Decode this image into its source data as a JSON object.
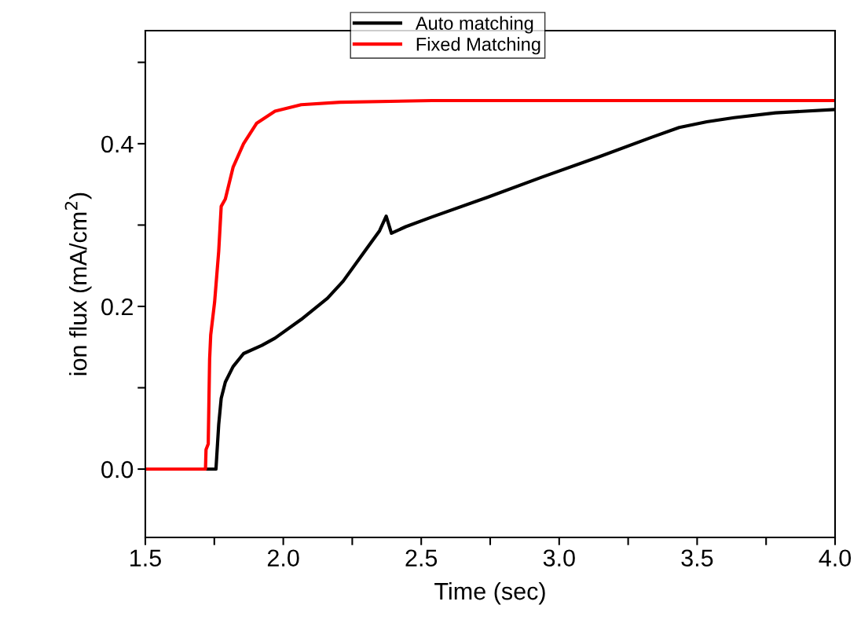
{
  "chart_data": {
    "type": "line",
    "xlabel": "Time (sec)",
    "ylabel": "ion flux (mA/cm$^{2}$)",
    "xlim": [
      1.5,
      4.0
    ],
    "ylim": [
      -0.084,
      0.539
    ],
    "xticks": [
      1.5,
      {
        "value": 1.75,
        "label": null
      },
      {
        "value": 2,
        "label": "2.0"
      },
      {
        "value": 2.25,
        "label": null
      },
      2.5,
      {
        "value": 2.75,
        "label": null
      },
      {
        "value": 3,
        "label": "3.0"
      },
      {
        "value": 3.25,
        "label": null
      },
      3.5,
      {
        "value": 3.75,
        "label": null
      },
      {
        "value": 4,
        "label": "4.0"
      }
    ],
    "yticks": [
      {
        "value": 0,
        "label": "0.0"
      },
      {
        "value": 0.1,
        "label": null
      },
      0.2,
      {
        "value": 0.3,
        "label": null
      },
      0.4,
      {
        "value": 0.5,
        "label": null
      }
    ],
    "legend": "top",
    "grid": false,
    "marker": "none",
    "line_style": "solid",
    "series": [
      {
        "name": "Auto matching",
        "color": "#000000",
        "x": [
          1.5,
          1.756,
          1.766,
          1.775,
          1.79,
          1.818,
          1.856,
          1.922,
          1.97,
          2.065,
          2.16,
          2.217,
          2.302,
          2.349,
          2.373,
          2.392,
          2.444,
          2.539,
          2.739,
          2.938,
          3.137,
          3.336,
          3.435,
          3.535,
          3.634,
          3.784,
          4.0
        ],
        "values": [
          0.0,
          0.0,
          0.055,
          0.087,
          0.107,
          0.126,
          0.142,
          0.152,
          0.161,
          0.184,
          0.21,
          0.231,
          0.271,
          0.293,
          0.311,
          0.29,
          0.298,
          0.31,
          0.334,
          0.359,
          0.383,
          0.408,
          0.42,
          0.427,
          0.432,
          0.438,
          0.442
        ]
      },
      {
        "name": "Fixed Matching",
        "color": "#ff0000",
        "x": [
          1.5,
          1.718,
          1.72,
          1.728,
          1.733,
          1.737,
          1.751,
          1.766,
          1.775,
          1.79,
          1.818,
          1.856,
          1.903,
          1.97,
          2.065,
          2.206,
          2.539,
          4.0
        ],
        "values": [
          0.0,
          0.0,
          0.024,
          0.031,
          0.135,
          0.165,
          0.205,
          0.268,
          0.323,
          0.332,
          0.371,
          0.4,
          0.425,
          0.44,
          0.448,
          0.451,
          0.453,
          0.453
        ]
      }
    ]
  }
}
